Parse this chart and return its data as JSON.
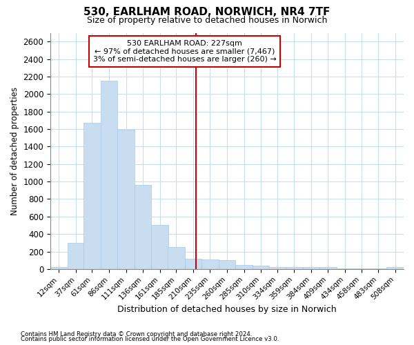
{
  "title1": "530, EARLHAM ROAD, NORWICH, NR4 7TF",
  "title2": "Size of property relative to detached houses in Norwich",
  "xlabel": "Distribution of detached houses by size in Norwich",
  "ylabel": "Number of detached properties",
  "footnote1": "Contains HM Land Registry data © Crown copyright and database right 2024.",
  "footnote2": "Contains public sector information licensed under the Open Government Licence v3.0.",
  "annotation_title": "530 EARLHAM ROAD: 227sqm",
  "annotation_line1": "← 97% of detached houses are smaller (7,467)",
  "annotation_line2": "3% of semi-detached houses are larger (260) →",
  "property_size": 227,
  "bar_color": "#c8ddf0",
  "bar_edge_color": "#a8c8e8",
  "vline_color": "#cc0000",
  "annotation_box_color": "#ffffff",
  "annotation_box_edge": "#cc0000",
  "background_color": "#ffffff",
  "grid_color": "#c8ddf0",
  "bin_edges": [
    12,
    37,
    61,
    86,
    111,
    136,
    161,
    185,
    210,
    235,
    260,
    285,
    310,
    334,
    359,
    384,
    409,
    434,
    458,
    483,
    508
  ],
  "bin_labels": [
    "12sqm",
    "37sqm",
    "61sqm",
    "86sqm",
    "111sqm",
    "136sqm",
    "161sqm",
    "185sqm",
    "210sqm",
    "235sqm",
    "260sqm",
    "285sqm",
    "310sqm",
    "334sqm",
    "359sqm",
    "384sqm",
    "409sqm",
    "434sqm",
    "458sqm",
    "483sqm",
    "508sqm"
  ],
  "counts": [
    25,
    300,
    1670,
    2150,
    1590,
    960,
    500,
    250,
    120,
    110,
    100,
    50,
    40,
    20,
    20,
    20,
    20,
    5,
    5,
    5,
    25
  ],
  "ylim": [
    0,
    2700
  ],
  "yticks": [
    0,
    200,
    400,
    600,
    800,
    1000,
    1200,
    1400,
    1600,
    1800,
    2000,
    2200,
    2400,
    2600
  ]
}
